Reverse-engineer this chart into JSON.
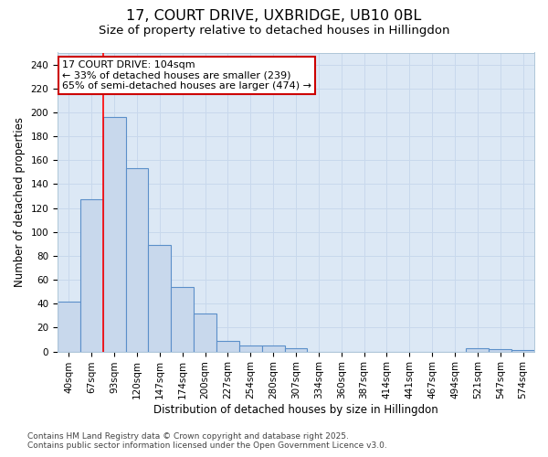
{
  "title_line1": "17, COURT DRIVE, UXBRIDGE, UB10 0BL",
  "title_line2": "Size of property relative to detached houses in Hillingdon",
  "xlabel": "Distribution of detached houses by size in Hillingdon",
  "ylabel": "Number of detached properties",
  "categories": [
    "40sqm",
    "67sqm",
    "93sqm",
    "120sqm",
    "147sqm",
    "174sqm",
    "200sqm",
    "227sqm",
    "254sqm",
    "280sqm",
    "307sqm",
    "334sqm",
    "360sqm",
    "387sqm",
    "414sqm",
    "441sqm",
    "467sqm",
    "494sqm",
    "521sqm",
    "547sqm",
    "574sqm"
  ],
  "values": [
    42,
    127,
    196,
    153,
    89,
    54,
    32,
    9,
    5,
    5,
    3,
    0,
    0,
    0,
    0,
    0,
    0,
    0,
    3,
    2,
    1
  ],
  "bar_color": "#c8d8ec",
  "bar_edge_color": "#5b8fc9",
  "red_line_index": 2,
  "annotation_text_line1": "17 COURT DRIVE: 104sqm",
  "annotation_text_line2": "← 33% of detached houses are smaller (239)",
  "annotation_text_line3": "65% of semi-detached houses are larger (474) →",
  "annotation_box_facecolor": "#ffffff",
  "annotation_box_edgecolor": "#cc0000",
  "ylim": [
    0,
    250
  ],
  "yticks": [
    0,
    20,
    40,
    60,
    80,
    100,
    120,
    140,
    160,
    180,
    200,
    220,
    240
  ],
  "grid_color": "#c8d8ec",
  "plot_bg_color": "#dce8f5",
  "fig_bg_color": "#ffffff",
  "footer_line1": "Contains HM Land Registry data © Crown copyright and database right 2025.",
  "footer_line2": "Contains public sector information licensed under the Open Government Licence v3.0.",
  "title_fontsize": 11.5,
  "subtitle_fontsize": 9.5,
  "axis_label_fontsize": 8.5,
  "tick_fontsize": 7.5,
  "annotation_fontsize": 8,
  "footer_fontsize": 6.5
}
